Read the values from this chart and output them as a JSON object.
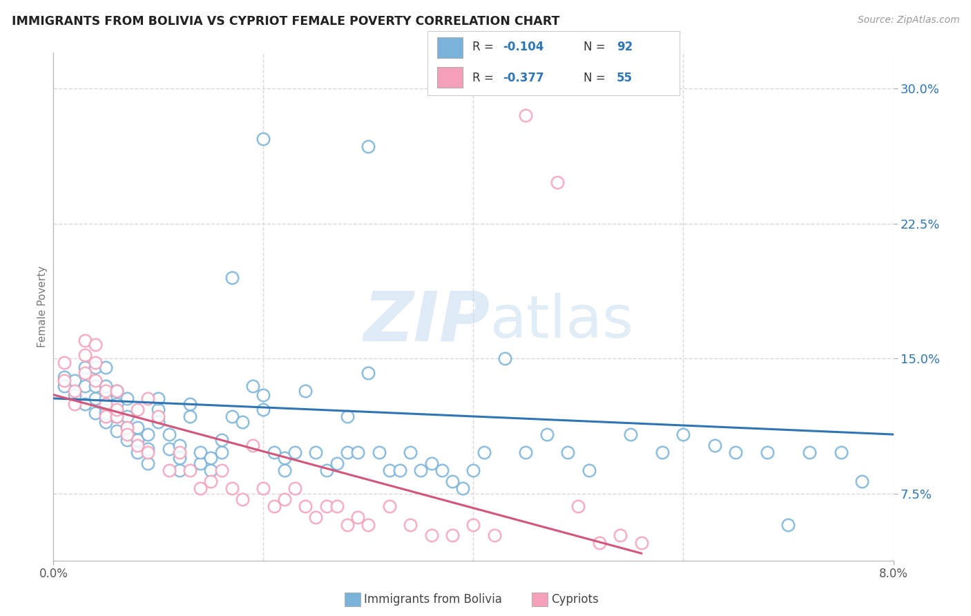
{
  "title": "IMMIGRANTS FROM BOLIVIA VS CYPRIOT FEMALE POVERTY CORRELATION CHART",
  "source": "Source: ZipAtlas.com",
  "ylabel": "Female Poverty",
  "yticks": [
    0.075,
    0.15,
    0.225,
    0.3
  ],
  "ytick_labels": [
    "7.5%",
    "15.0%",
    "22.5%",
    "30.0%"
  ],
  "xmin": 0.0,
  "xmax": 0.08,
  "ymin": 0.038,
  "ymax": 0.32,
  "color_blue": "#7ab3d9",
  "color_pink": "#f4a0b8",
  "color_blue_text": "#2e75b6",
  "color_pink_text": "#d4547a",
  "watermark_zip": "ZIP",
  "watermark_atlas": "atlas",
  "label_blue": "Immigrants from Bolivia",
  "label_pink": "Cypriots",
  "blue_scatter_x": [
    0.001,
    0.001,
    0.002,
    0.002,
    0.003,
    0.003,
    0.003,
    0.004,
    0.004,
    0.004,
    0.004,
    0.005,
    0.005,
    0.005,
    0.005,
    0.005,
    0.006,
    0.006,
    0.006,
    0.006,
    0.007,
    0.007,
    0.007,
    0.007,
    0.008,
    0.008,
    0.008,
    0.009,
    0.009,
    0.009,
    0.01,
    0.01,
    0.01,
    0.011,
    0.011,
    0.012,
    0.012,
    0.012,
    0.013,
    0.013,
    0.014,
    0.014,
    0.015,
    0.015,
    0.016,
    0.016,
    0.017,
    0.017,
    0.018,
    0.019,
    0.02,
    0.02,
    0.021,
    0.022,
    0.022,
    0.023,
    0.024,
    0.025,
    0.026,
    0.027,
    0.028,
    0.028,
    0.029,
    0.03,
    0.031,
    0.032,
    0.033,
    0.034,
    0.035,
    0.036,
    0.037,
    0.038,
    0.039,
    0.04,
    0.041,
    0.043,
    0.045,
    0.047,
    0.049,
    0.051,
    0.055,
    0.058,
    0.06,
    0.063,
    0.065,
    0.068,
    0.07,
    0.072,
    0.075,
    0.077,
    0.02,
    0.03
  ],
  "blue_scatter_y": [
    0.14,
    0.135,
    0.138,
    0.13,
    0.135,
    0.125,
    0.145,
    0.12,
    0.128,
    0.135,
    0.145,
    0.115,
    0.12,
    0.128,
    0.135,
    0.145,
    0.11,
    0.118,
    0.125,
    0.132,
    0.105,
    0.112,
    0.118,
    0.128,
    0.098,
    0.105,
    0.112,
    0.092,
    0.1,
    0.108,
    0.115,
    0.122,
    0.128,
    0.1,
    0.108,
    0.088,
    0.095,
    0.102,
    0.118,
    0.125,
    0.092,
    0.098,
    0.088,
    0.095,
    0.098,
    0.105,
    0.195,
    0.118,
    0.115,
    0.135,
    0.122,
    0.13,
    0.098,
    0.088,
    0.095,
    0.098,
    0.132,
    0.098,
    0.088,
    0.092,
    0.118,
    0.098,
    0.098,
    0.142,
    0.098,
    0.088,
    0.088,
    0.098,
    0.088,
    0.092,
    0.088,
    0.082,
    0.078,
    0.088,
    0.098,
    0.15,
    0.098,
    0.108,
    0.098,
    0.088,
    0.108,
    0.098,
    0.108,
    0.102,
    0.098,
    0.098,
    0.058,
    0.098,
    0.098,
    0.082,
    0.272,
    0.268
  ],
  "pink_scatter_x": [
    0.001,
    0.001,
    0.002,
    0.002,
    0.003,
    0.003,
    0.003,
    0.004,
    0.004,
    0.004,
    0.005,
    0.005,
    0.005,
    0.006,
    0.006,
    0.006,
    0.007,
    0.007,
    0.008,
    0.008,
    0.009,
    0.009,
    0.01,
    0.011,
    0.012,
    0.013,
    0.014,
    0.015,
    0.016,
    0.017,
    0.018,
    0.019,
    0.02,
    0.021,
    0.022,
    0.023,
    0.024,
    0.025,
    0.026,
    0.027,
    0.028,
    0.029,
    0.03,
    0.032,
    0.034,
    0.036,
    0.038,
    0.04,
    0.042,
    0.045,
    0.048,
    0.05,
    0.052,
    0.054,
    0.056
  ],
  "pink_scatter_y": [
    0.148,
    0.138,
    0.132,
    0.125,
    0.152,
    0.142,
    0.16,
    0.158,
    0.148,
    0.138,
    0.132,
    0.125,
    0.118,
    0.118,
    0.122,
    0.132,
    0.112,
    0.108,
    0.102,
    0.122,
    0.128,
    0.098,
    0.118,
    0.088,
    0.098,
    0.088,
    0.078,
    0.082,
    0.088,
    0.078,
    0.072,
    0.102,
    0.078,
    0.068,
    0.072,
    0.078,
    0.068,
    0.062,
    0.068,
    0.068,
    0.058,
    0.062,
    0.058,
    0.068,
    0.058,
    0.052,
    0.052,
    0.058,
    0.052,
    0.285,
    0.248,
    0.068,
    0.048,
    0.052,
    0.048
  ],
  "blue_line_x": [
    0.0,
    0.08
  ],
  "blue_line_y": [
    0.128,
    0.108
  ],
  "pink_line_x": [
    0.0,
    0.056
  ],
  "pink_line_y": [
    0.13,
    0.042
  ],
  "grid_color": "#d8d8d8",
  "background_color": "#ffffff"
}
